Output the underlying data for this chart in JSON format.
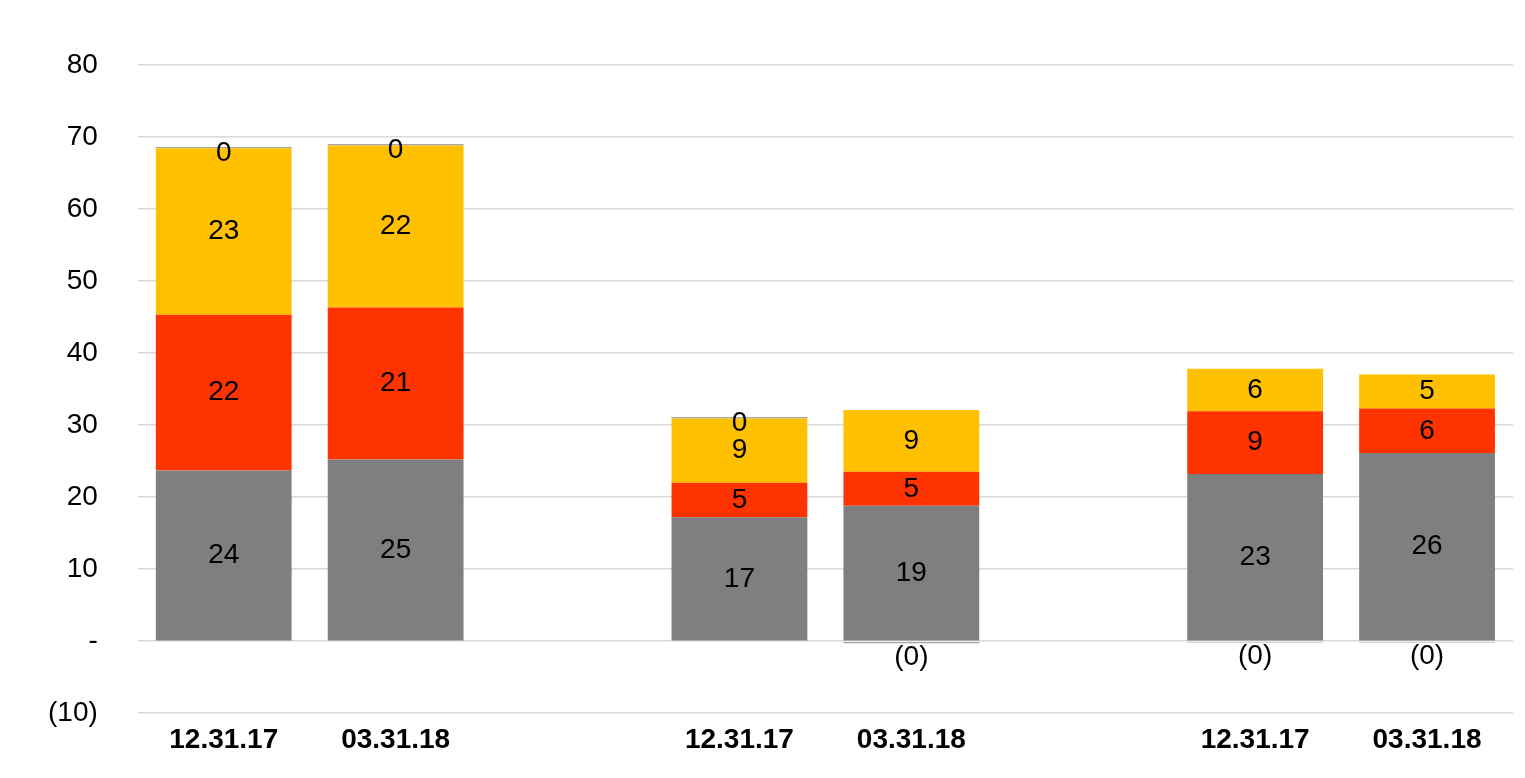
{
  "chart_data": {
    "type": "bar",
    "stacked": true,
    "categories": [
      "12.31.17",
      "03.31.18",
      null,
      "12.31.17",
      "03.31.18",
      null,
      "12.31.17",
      "03.31.18"
    ],
    "series": [
      {
        "color": "#7f7f7f",
        "values": [
          23.7,
          25.2,
          null,
          17.2,
          18.8,
          null,
          23.2,
          26.1
        ],
        "value_labels": [
          "24",
          "25",
          null,
          "17",
          "19",
          null,
          "23",
          "26"
        ]
      },
      {
        "color": "#ff3300",
        "values": [
          21.6,
          21.1,
          null,
          4.8,
          4.7,
          null,
          8.7,
          6.2
        ],
        "value_labels": [
          "22",
          "21",
          null,
          "5",
          "5",
          null,
          "9",
          "6"
        ]
      },
      {
        "color": "#ffc000",
        "values": [
          23.1,
          22.5,
          null,
          8.9,
          8.6,
          null,
          5.9,
          4.7
        ],
        "value_labels": [
          "23",
          "22",
          null,
          "9",
          "9",
          null,
          "6",
          "5"
        ]
      },
      {
        "color": "#a5a5a5",
        "values": [
          0.2,
          0.2,
          null,
          0.2,
          -0.3,
          null,
          -0.2,
          -0.2
        ],
        "value_labels": [
          "0",
          "0",
          null,
          "0",
          "(0)",
          null,
          "(0)",
          "(0)"
        ]
      }
    ],
    "ylim": [
      -10,
      80
    ],
    "yticks": [
      {
        "value": -10,
        "label": "(10)"
      },
      {
        "value": 0,
        "label": "-"
      },
      10,
      20,
      30,
      40,
      50,
      60,
      70,
      80
    ],
    "grid": "y",
    "legend": false
  }
}
